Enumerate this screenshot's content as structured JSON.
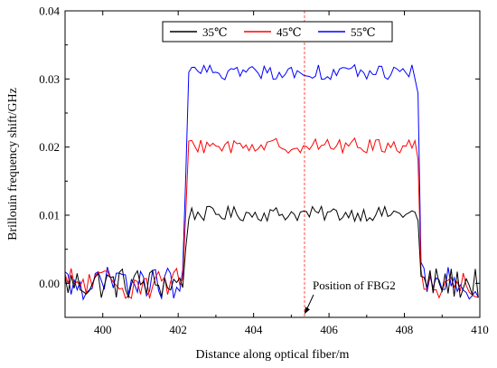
{
  "chart_data": {
    "type": "line",
    "xlabel": "Distance along optical fiber/m",
    "ylabel": "Brillouin frequency shift/GHz",
    "xlim": [
      399,
      410
    ],
    "ylim": [
      -0.005,
      0.04
    ],
    "x_ticks": [
      400,
      402,
      404,
      406,
      408,
      410
    ],
    "y_ticks": [
      0.0,
      0.01,
      0.02,
      0.03,
      0.04
    ],
    "x_tick_labels": [
      "400",
      "402",
      "404",
      "406",
      "408",
      "410"
    ],
    "y_tick_labels": [
      "0.00",
      "0.01",
      "0.02",
      "0.03",
      "0.04"
    ],
    "grid": false,
    "legend_position": "top-right",
    "plateau_start": 402.2,
    "plateau_end": 408.35,
    "series": [
      {
        "name": "35℃",
        "color": "#000000",
        "plateau_level": 0.0102
      },
      {
        "name": "45℃",
        "color": "#ff0000",
        "plateau_level": 0.0202
      },
      {
        "name": "55℃",
        "color": "#0000ff",
        "plateau_level": 0.031
      }
    ],
    "reference_line": {
      "x": 405.35,
      "color": "#ff4d4d"
    },
    "annotation": {
      "text": "Position of FBG2",
      "arrow_to": [
        405.35,
        -0.0045
      ]
    }
  }
}
